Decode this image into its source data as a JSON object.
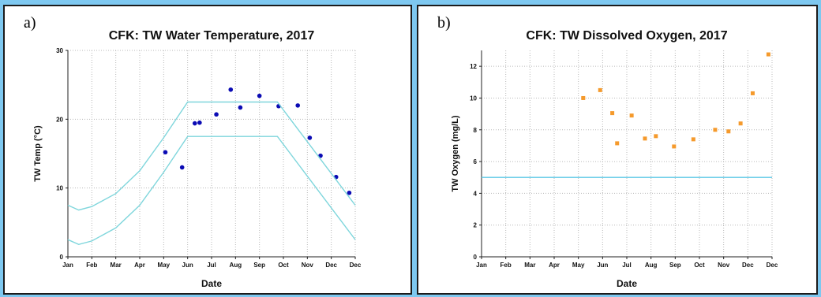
{
  "chart_data": [
    {
      "panel_label": "a)",
      "type": "scatter",
      "title": "CFK: TW Water Temperature, 2017",
      "xlabel": "Date",
      "ylabel": "TW Temp (°C)",
      "x_ticks": [
        "Jan",
        "Feb",
        "Mar",
        "Apr",
        "May",
        "Jun",
        "Jul",
        "Aug",
        "Sep",
        "Oct",
        "Nov",
        "Dec",
        "Dec"
      ],
      "xlim": [
        0,
        12
      ],
      "ylim": [
        0,
        30
      ],
      "y_ticks": [
        "0",
        "10",
        "20",
        "30"
      ],
      "y_tick_values": [
        0,
        10,
        20,
        30
      ],
      "grid": true,
      "series": [
        {
          "kind": "points",
          "color": "#0b0bb4",
          "points": [
            {
              "x": 4.07,
              "y": 15.2
            },
            {
              "x": 4.77,
              "y": 13.0
            },
            {
              "x": 5.3,
              "y": 19.4
            },
            {
              "x": 5.5,
              "y": 19.5
            },
            {
              "x": 6.2,
              "y": 20.7
            },
            {
              "x": 6.8,
              "y": 24.3
            },
            {
              "x": 7.2,
              "y": 21.7
            },
            {
              "x": 8.0,
              "y": 23.4
            },
            {
              "x": 8.8,
              "y": 21.9
            },
            {
              "x": 9.6,
              "y": 22.0
            },
            {
              "x": 10.1,
              "y": 17.3
            },
            {
              "x": 10.55,
              "y": 14.7
            },
            {
              "x": 11.2,
              "y": 11.6
            },
            {
              "x": 11.75,
              "y": 9.3
            }
          ]
        },
        {
          "kind": "line",
          "color": "#7fd6dc",
          "points": [
            {
              "x": 0,
              "y": 7.5
            },
            {
              "x": 0.45,
              "y": 6.8
            },
            {
              "x": 1.0,
              "y": 7.3
            },
            {
              "x": 2.0,
              "y": 9.2
            },
            {
              "x": 3.0,
              "y": 12.5
            },
            {
              "x": 4.0,
              "y": 17.3
            },
            {
              "x": 5.0,
              "y": 22.5
            },
            {
              "x": 8.75,
              "y": 22.5
            },
            {
              "x": 12.0,
              "y": 7.5
            }
          ]
        },
        {
          "kind": "line",
          "color": "#7fd6dc",
          "points": [
            {
              "x": 0,
              "y": 2.5
            },
            {
              "x": 0.45,
              "y": 1.8
            },
            {
              "x": 1.0,
              "y": 2.3
            },
            {
              "x": 2.0,
              "y": 4.2
            },
            {
              "x": 3.0,
              "y": 7.5
            },
            {
              "x": 4.0,
              "y": 12.3
            },
            {
              "x": 5.0,
              "y": 17.5
            },
            {
              "x": 8.75,
              "y": 17.5
            },
            {
              "x": 12.0,
              "y": 2.5
            }
          ]
        }
      ]
    },
    {
      "panel_label": "b)",
      "type": "scatter",
      "title": "CFK: TW Dissolved Oxygen, 2017",
      "xlabel": "Date",
      "ylabel": "TW Oxygen (mg/L)",
      "x_ticks": [
        "Jan",
        "Feb",
        "Mar",
        "Apr",
        "May",
        "Jun",
        "Jul",
        "Aug",
        "Sep",
        "Oct",
        "Nov",
        "Dec",
        "Dec"
      ],
      "xlim": [
        0,
        12
      ],
      "ylim": [
        0,
        13
      ],
      "y_ticks": [
        "0",
        "2",
        "4",
        "6",
        "8",
        "10",
        "12"
      ],
      "y_tick_values": [
        0,
        2,
        4,
        6,
        8,
        10,
        12
      ],
      "grid": true,
      "series": [
        {
          "kind": "squares",
          "color": "#f59a2c",
          "points": [
            {
              "x": 4.2,
              "y": 10.0
            },
            {
              "x": 4.9,
              "y": 10.5
            },
            {
              "x": 5.4,
              "y": 9.05
            },
            {
              "x": 5.6,
              "y": 7.15
            },
            {
              "x": 6.2,
              "y": 8.9
            },
            {
              "x": 6.75,
              "y": 7.45
            },
            {
              "x": 7.2,
              "y": 7.6
            },
            {
              "x": 7.95,
              "y": 6.95
            },
            {
              "x": 8.75,
              "y": 7.4
            },
            {
              "x": 9.65,
              "y": 8.0
            },
            {
              "x": 10.2,
              "y": 7.9
            },
            {
              "x": 10.7,
              "y": 8.4
            },
            {
              "x": 11.2,
              "y": 10.3
            },
            {
              "x": 11.85,
              "y": 12.75
            }
          ]
        },
        {
          "kind": "line",
          "color": "#5bc8e6",
          "points": [
            {
              "x": 0,
              "y": 5.0
            },
            {
              "x": 12,
              "y": 5.0
            }
          ]
        }
      ]
    }
  ]
}
